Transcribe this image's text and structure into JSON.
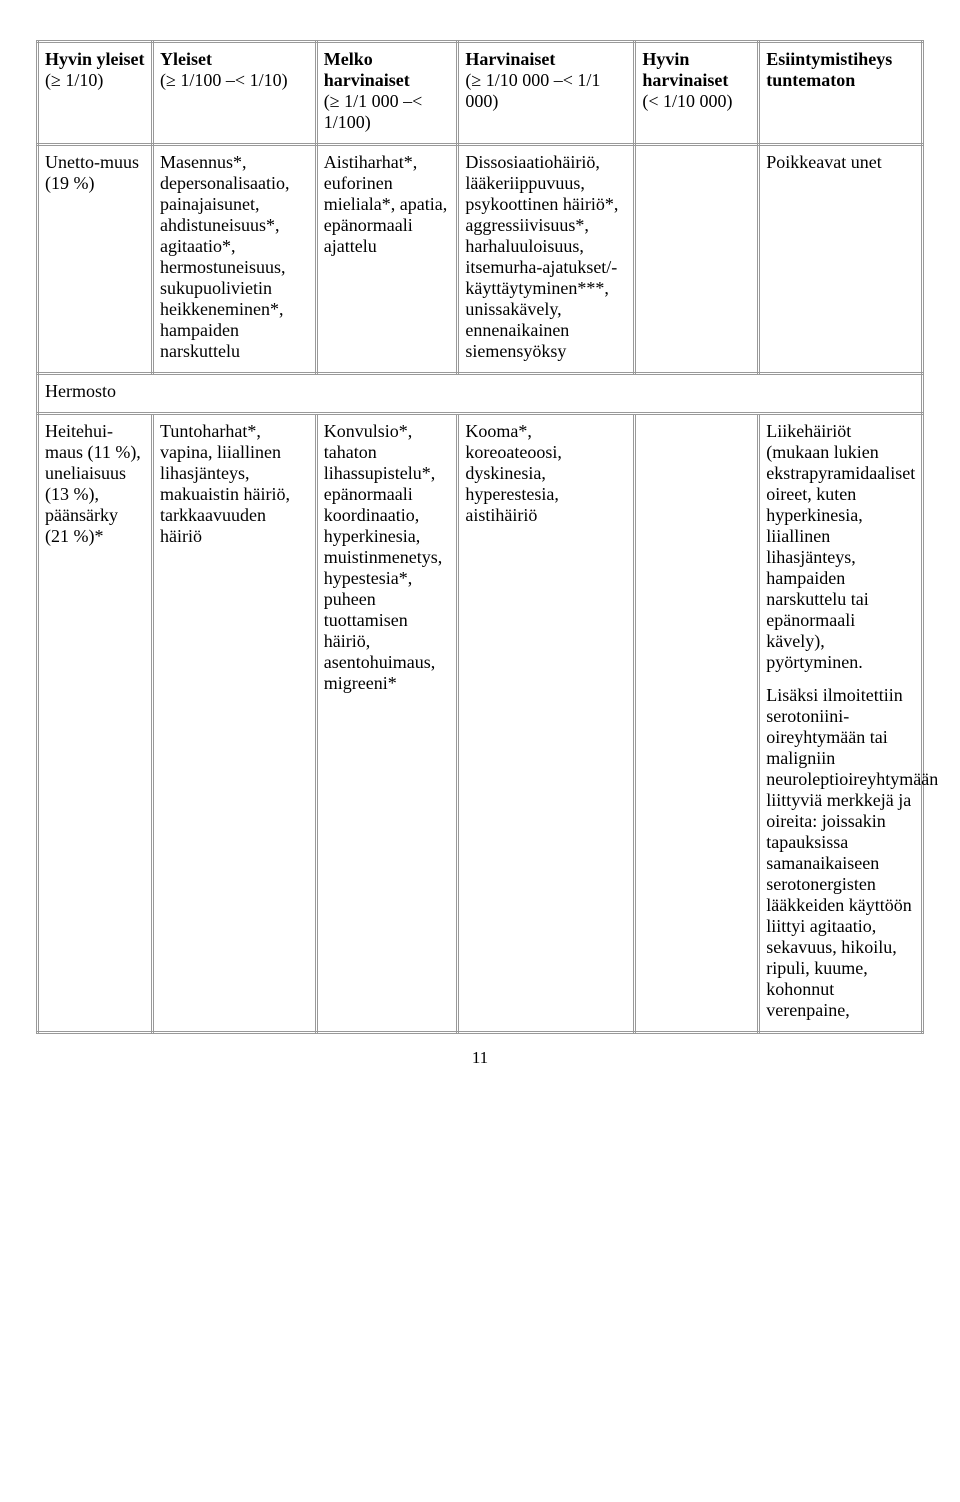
{
  "headers": {
    "c1": {
      "title": "Hyvin yleiset",
      "sub": "(≥ 1/10)"
    },
    "c2": {
      "title": "Yleiset",
      "sub": "(≥ 1/100 –< 1/10)"
    },
    "c3": {
      "title": "Melko harvinaiset",
      "sub": "(≥ 1/1 000 –< 1/100)"
    },
    "c4": {
      "title": "Harvinaiset",
      "sub": "(≥ 1/10 000 –< 1/1 000)"
    },
    "c5": {
      "title": "Hyvin harvinaiset",
      "sub": "(< 1/10 000)"
    },
    "c6": {
      "title": "Esiintymistiheys tuntematon",
      "sub": ""
    }
  },
  "row1": {
    "c1": "Unetto-muus (19 %)",
    "c2": "Masennus*, depersonalisaatio, painajaisunet, ahdistuneisuus*, agitaatio*, hermostuneisuus, sukupuolivietin heikkeneminen*, hampaiden narskuttelu",
    "c3": "Aistiharhat*, euforinen mieliala*, apatia, epänormaali ajattelu",
    "c4": "Dissosiaatiohäiriö, lääkeriippuvuus, psykoottinen häiriö*, aggressiivisuus*, harhaluuloisuus, itsemurha-ajatukset/-käyttäytyminen***, unissakävely, ennenaikainen siemensyöksy",
    "c5": "",
    "c6": "Poikkeavat unet"
  },
  "section1": "Hermosto",
  "row2": {
    "c1": "Heitehui-maus (11 %), uneliaisuus (13 %), päänsärky (21 %)*",
    "c2": "Tuntoharhat*, vapina, liiallinen lihasjänteys, makuaistin häiriö, tarkkaavuuden häiriö",
    "c3": "Konvulsio*, tahaton lihassupistelu*, epänormaali koordinaatio, hyperkinesia, muistinmenetys, hypestesia*, puheen tuottamisen häiriö, asentohuimaus, migreeni*",
    "c4": "Kooma*, koreoateoosi, dyskinesia, hyperestesia, aistihäiriö",
    "c5": "",
    "c6a": "Liikehäiriöt (mukaan lukien ekstrapyramidaaliset oireet, kuten hyperkinesia, liiallinen lihasjänteys, hampaiden narskuttelu tai epänormaali kävely), pyörtyminen.",
    "c6b": "Lisäksi ilmoitettiin serotoniini-oireyhtymään tai maligniin neuroleptioireyhtymään liittyviä merkkejä ja oireita: joissakin tapauksissa samanaikaiseen serotonergisten lääkkeiden käyttöön liittyi agitaatio, sekavuus, hikoilu, ripuli, kuume, kohonnut verenpaine,"
  },
  "page_number": "11"
}
